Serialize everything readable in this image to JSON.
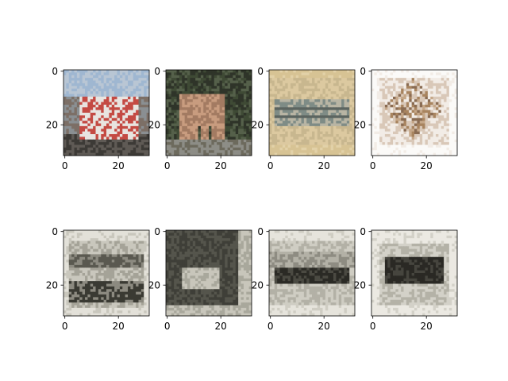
{
  "figure": {
    "background": "#ffffff"
  },
  "chart_data": [
    {
      "type": "image",
      "row": "top",
      "index": 1,
      "content": "red truck on grey road under light blue sky",
      "image_size": [
        32,
        32
      ],
      "xticks": [
        "0",
        "20"
      ],
      "yticks": [
        "0",
        "20"
      ],
      "palette": [
        "#b9c6d4",
        "#9fb7d1",
        "#c44a43",
        "#e8e4e0",
        "#5f5a55",
        "#3d3a36",
        "#8a8f92",
        "#7c6f66"
      ]
    },
    {
      "type": "image",
      "row": "top",
      "index": 2,
      "content": "brown deer standing against dark green foliage",
      "image_size": [
        32,
        32
      ],
      "xticks": [
        "0",
        "20"
      ],
      "yticks": [
        "0",
        "20"
      ],
      "palette": [
        "#3f4a35",
        "#55604a",
        "#a37b62",
        "#c89c7f",
        "#6d6a5d",
        "#8d8d86",
        "#2f3429",
        "#b59a86"
      ]
    },
    {
      "type": "image",
      "row": "top",
      "index": 3,
      "content": "airplane on a tan background",
      "image_size": [
        32,
        32
      ],
      "xticks": [
        "0",
        "20"
      ],
      "yticks": [
        "0",
        "20"
      ],
      "palette": [
        "#dcc9a0",
        "#c8b78f",
        "#9aa49a",
        "#5c6560",
        "#7f8c86",
        "#b8b5a4",
        "#d7c394",
        "#e2d1a8"
      ]
    },
    {
      "type": "image",
      "row": "top",
      "index": 4,
      "content": "sketchy brown deer on a white background",
      "image_size": [
        32,
        32
      ],
      "xticks": [
        "0",
        "20"
      ],
      "yticks": [
        "0",
        "20"
      ],
      "palette": [
        "#fbfaf8",
        "#e9e0d8",
        "#c5a788",
        "#a8845f",
        "#8a6c53",
        "#d9c8b8",
        "#b79c84",
        "#f2ece6"
      ]
    },
    {
      "type": "image",
      "row": "bottom",
      "index": 1,
      "content": "blurry grayscale reconstruction",
      "image_size": [
        32,
        32
      ],
      "xticks": [
        "0",
        "20"
      ],
      "yticks": [
        "0",
        "20"
      ],
      "palette": [
        "#e3e1d9",
        "#c9c7bd",
        "#8c8a80",
        "#5a5950",
        "#3a3a33",
        "#a5a398"
      ]
    },
    {
      "type": "image",
      "row": "bottom",
      "index": 2,
      "content": "blurry grayscale reconstruction",
      "image_size": [
        32,
        32
      ],
      "xticks": [
        "0",
        "20"
      ],
      "yticks": [
        "0",
        "20"
      ],
      "palette": [
        "#3f3f38",
        "#55554c",
        "#7a796e",
        "#a9a89c",
        "#c8c6bb",
        "#2e2e28"
      ]
    },
    {
      "type": "image",
      "row": "bottom",
      "index": 3,
      "content": "blurry grayscale reconstruction",
      "image_size": [
        32,
        32
      ],
      "xticks": [
        "0",
        "20"
      ],
      "yticks": [
        "0",
        "20"
      ],
      "palette": [
        "#e6e4dc",
        "#cfcdc3",
        "#8e8c82",
        "#4b4a42",
        "#2b2a25",
        "#b3b1a6"
      ]
    },
    {
      "type": "image",
      "row": "bottom",
      "index": 4,
      "content": "blurry grayscale reconstruction",
      "image_size": [
        32,
        32
      ],
      "xticks": [
        "0",
        "20"
      ],
      "yticks": [
        "0",
        "20"
      ],
      "palette": [
        "#ebe9e2",
        "#d3d1c8",
        "#8f8d83",
        "#46453e",
        "#2a2924",
        "#b4b2a7"
      ]
    }
  ]
}
